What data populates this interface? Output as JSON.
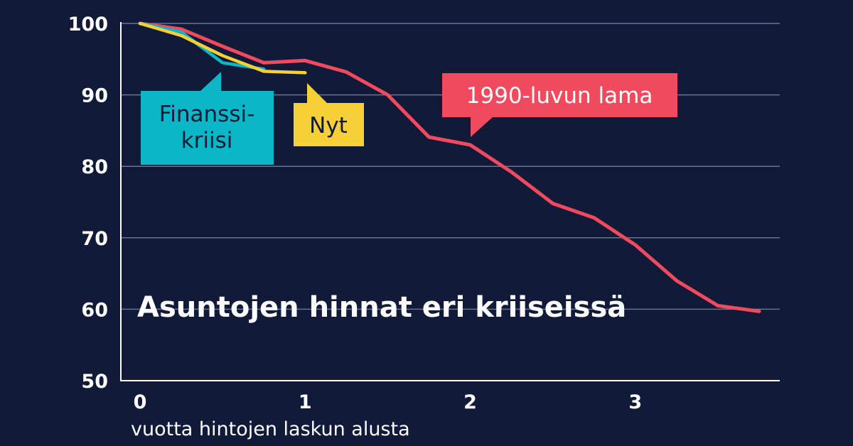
{
  "colors": {
    "background": "#111a38",
    "grid": "#6a7394",
    "axis": "#ffffff",
    "lama": "#ef4a5d",
    "finanssikriisi": "#0bb6c7",
    "nyt": "#f7d038"
  },
  "chart_data": {
    "type": "line",
    "title": "Asuntojen hinnat eri kriiseissä",
    "xlabel": "vuotta hintojen laskun alusta",
    "ylabel": "",
    "xlim": [
      0,
      3.75
    ],
    "ylim": [
      50,
      100
    ],
    "xticks": [
      "0",
      "1",
      "2",
      "3"
    ],
    "yticks": [
      "100",
      "90",
      "80",
      "70",
      "60",
      "50"
    ],
    "grid": true,
    "series": [
      {
        "key": "lama",
        "name": "1990-luvun lama",
        "color": "#ef4a5d",
        "x": [
          0,
          0.25,
          0.5,
          0.75,
          1.0,
          1.25,
          1.5,
          1.75,
          2.0,
          2.25,
          2.5,
          2.75,
          3.0,
          3.25,
          3.5,
          3.75
        ],
        "y": [
          100,
          99.2,
          96.8,
          94.5,
          94.8,
          93.2,
          90.0,
          84.1,
          83.0,
          79.2,
          74.8,
          72.8,
          69.0,
          64.0,
          60.5,
          59.7
        ]
      },
      {
        "key": "finanssikriisi",
        "name": "Finanssi-kriisi",
        "name_lines": [
          "Finanssi-",
          "kriisi"
        ],
        "color": "#0bb6c7",
        "x": [
          0,
          0.25,
          0.5,
          0.75
        ],
        "y": [
          100,
          98.8,
          94.5,
          93.6
        ]
      },
      {
        "key": "nyt",
        "name": "Nyt",
        "color": "#f7d038",
        "x": [
          0,
          0.25,
          0.5,
          0.75,
          1.0
        ],
        "y": [
          100,
          98.3,
          95.5,
          93.3,
          93.1
        ]
      }
    ]
  }
}
